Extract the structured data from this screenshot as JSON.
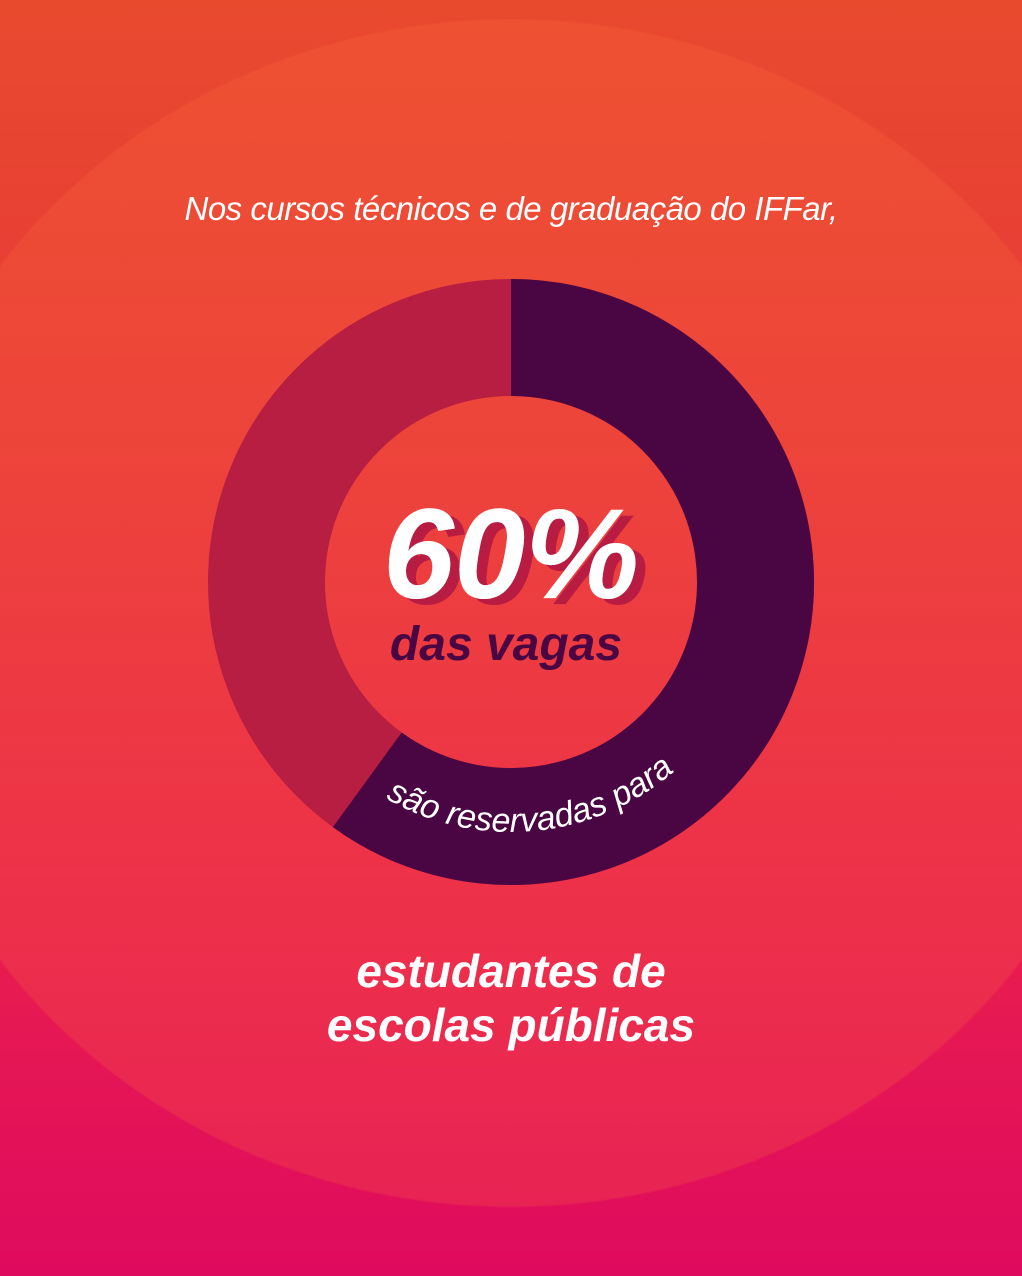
{
  "intro": "Nos cursos técnicos e de graduação do IFFar,",
  "chart_data": {
    "type": "pie",
    "style": "donut",
    "values": [
      60,
      40
    ],
    "colors": [
      "#4a0642",
      "#b81e42"
    ],
    "center_value": "60%",
    "center_label": "das vagas",
    "arc_label": "são reservadas para"
  },
  "conclusion": {
    "line1": "estudantes de",
    "line2": "escolas públicas"
  },
  "colors": {
    "accent_dark": "#4a0642",
    "shadow": "#b81e42",
    "text": "#ffffff"
  }
}
